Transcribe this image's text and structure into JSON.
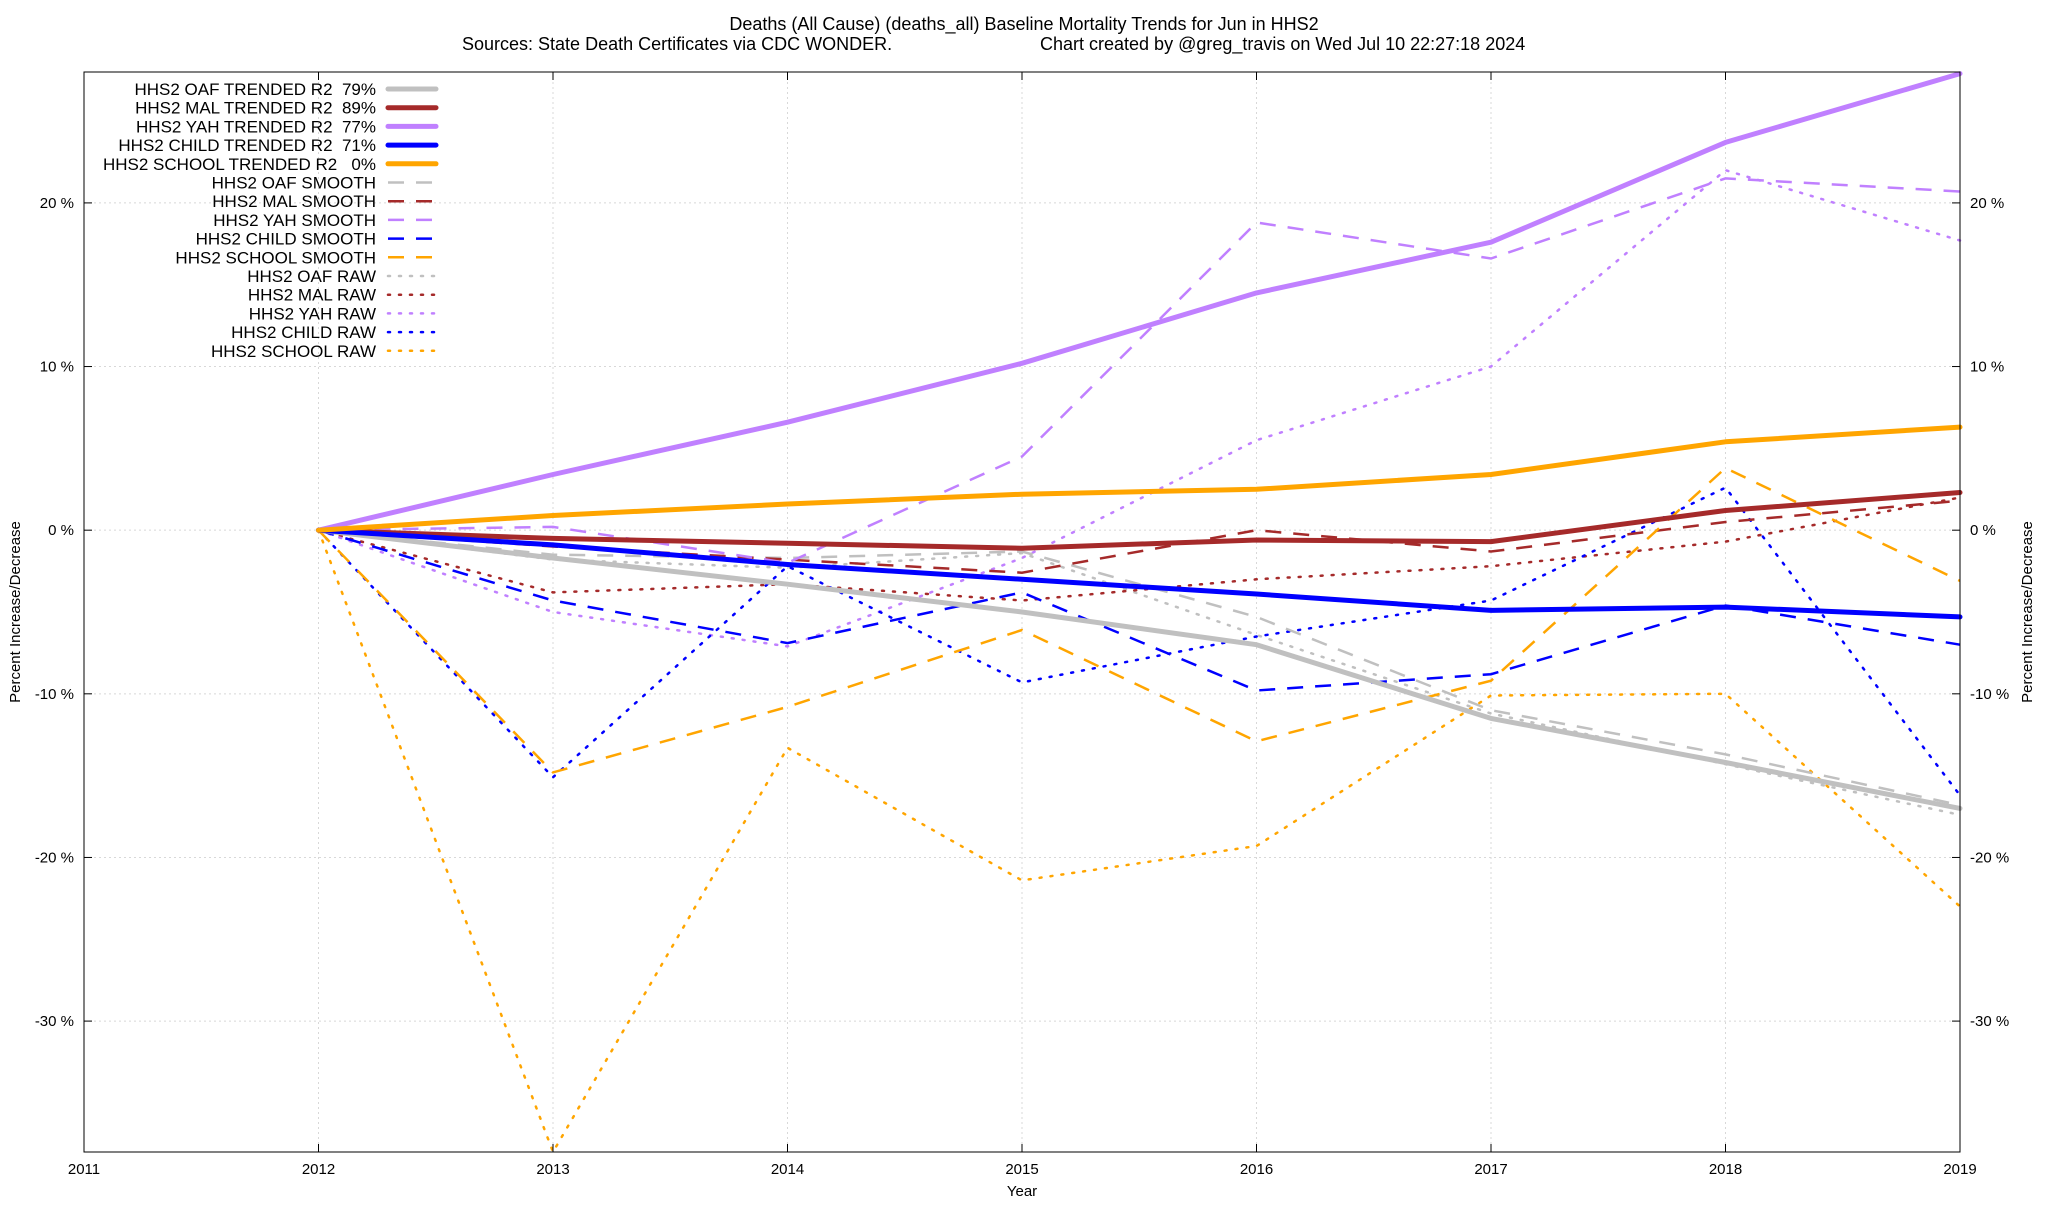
{
  "chart_data": {
    "type": "line",
    "title": "Deaths (All Cause) (deaths_all)  Baseline Mortality Trends for Jun in HHS2",
    "subtitle_left": "Sources: State Death Certificates via CDC WONDER.",
    "subtitle_right": "Chart created by @greg_travis on Wed Jul 10 22:27:18 2024",
    "xlabel": "Year",
    "ylabel": "Percent Increase/Decrease",
    "ylabel_right": "Percent Increase/Decrease",
    "xlim": [
      2011,
      2019
    ],
    "ylim": [
      -38,
      28
    ],
    "grid": true,
    "legend_position": "top-left",
    "x_ticks": [
      {
        "value": 2011,
        "label": "2011"
      },
      {
        "value": 2012,
        "label": "2012"
      },
      {
        "value": 2013,
        "label": "2013"
      },
      {
        "value": 2014,
        "label": "2014"
      },
      {
        "value": 2015,
        "label": "2015"
      },
      {
        "value": 2016,
        "label": "2016"
      },
      {
        "value": 2017,
        "label": "2017"
      },
      {
        "value": 2018,
        "label": "2018"
      },
      {
        "value": 2019,
        "label": "2019"
      }
    ],
    "y_ticks": [
      {
        "value": 20,
        "label": "20 %"
      },
      {
        "value": 10,
        "label": "10 %"
      },
      {
        "value": 0,
        "label": "0 %"
      },
      {
        "value": -10,
        "label": "-10 %"
      },
      {
        "value": -20,
        "label": "-20 %"
      },
      {
        "value": -30,
        "label": "-30 %"
      }
    ],
    "x": [
      2012,
      2013,
      2014,
      2015,
      2016,
      2017,
      2018,
      2019
    ],
    "series": [
      {
        "name": "HHS2 OAF TRENDED R2  79%",
        "style": "solid",
        "color": "#c0c0c0",
        "values": [
          0,
          -1.7,
          -3.3,
          -5.0,
          -7.0,
          -11.5,
          -14.2,
          -17.0
        ]
      },
      {
        "name": "HHS2 MAL TRENDED R2  89%",
        "style": "solid",
        "color": "#a52a2a",
        "values": [
          0,
          -0.5,
          -0.8,
          -1.1,
          -0.6,
          -0.7,
          1.2,
          2.3
        ]
      },
      {
        "name": "HHS2 YAH TRENDED R2  77%",
        "style": "solid",
        "color": "#c080ff",
        "values": [
          0,
          3.4,
          6.6,
          10.2,
          14.5,
          17.6,
          23.7,
          27.9
        ]
      },
      {
        "name": "HHS2 CHILD TRENDED R2  71%",
        "style": "solid",
        "color": "#0000ff",
        "values": [
          0,
          -0.9,
          -2.1,
          -3.0,
          -3.9,
          -4.9,
          -4.7,
          -5.3
        ]
      },
      {
        "name": "HHS2 SCHOOL TRENDED R2   0%",
        "style": "solid",
        "color": "#ffa500",
        "values": [
          0,
          0.9,
          1.6,
          2.2,
          2.5,
          3.4,
          5.4,
          6.3
        ]
      },
      {
        "name": "HHS2 OAF SMOOTH",
        "style": "dashed",
        "color": "#c0c0c0",
        "values": [
          0,
          -1.5,
          -1.7,
          -1.3,
          -5.3,
          -11.0,
          -13.7,
          -16.8
        ]
      },
      {
        "name": "HHS2 MAL SMOOTH",
        "style": "dashed",
        "color": "#a52a2a",
        "values": [
          0,
          -1.0,
          -1.8,
          -2.6,
          0.0,
          -1.3,
          0.5,
          1.8
        ]
      },
      {
        "name": "HHS2 YAH SMOOTH",
        "style": "dashed",
        "color": "#c080ff",
        "values": [
          0,
          0.2,
          -2.0,
          4.5,
          18.8,
          16.6,
          21.5,
          20.7
        ]
      },
      {
        "name": "HHS2 CHILD SMOOTH",
        "style": "dashed",
        "color": "#0000ff",
        "values": [
          0,
          -4.3,
          -6.9,
          -3.8,
          -9.8,
          -8.8,
          -4.6,
          -7.0
        ]
      },
      {
        "name": "HHS2 SCHOOL SMOOTH",
        "style": "dashed",
        "color": "#ffa500",
        "values": [
          0,
          -14.8,
          -10.8,
          -6.1,
          -12.9,
          -9.2,
          3.8,
          -3.1
        ]
      },
      {
        "name": "HHS2 OAF RAW",
        "style": "dotted",
        "color": "#c0c0c0",
        "values": [
          0,
          -1.8,
          -2.3,
          -1.4,
          -6.4,
          -11.2,
          -14.3,
          -17.4
        ]
      },
      {
        "name": "HHS2 MAL RAW",
        "style": "dotted",
        "color": "#a52a2a",
        "values": [
          0,
          -3.8,
          -3.3,
          -4.3,
          -3.0,
          -2.2,
          -0.7,
          2.0
        ]
      },
      {
        "name": "HHS2 YAH RAW",
        "style": "dotted",
        "color": "#c080ff",
        "values": [
          0,
          -5.0,
          -7.1,
          -1.7,
          5.5,
          10.0,
          22.0,
          17.7
        ]
      },
      {
        "name": "HHS2 CHILD RAW",
        "style": "dotted",
        "color": "#0000ff",
        "values": [
          0,
          -15.1,
          -2.2,
          -9.3,
          -6.5,
          -4.3,
          2.6,
          -16.2
        ]
      },
      {
        "name": "HHS2 SCHOOL RAW",
        "style": "dotted",
        "color": "#ffa500",
        "values": [
          0,
          -38.0,
          -13.3,
          -21.4,
          -19.3,
          -10.1,
          -10.0,
          -23.0
        ]
      }
    ]
  }
}
